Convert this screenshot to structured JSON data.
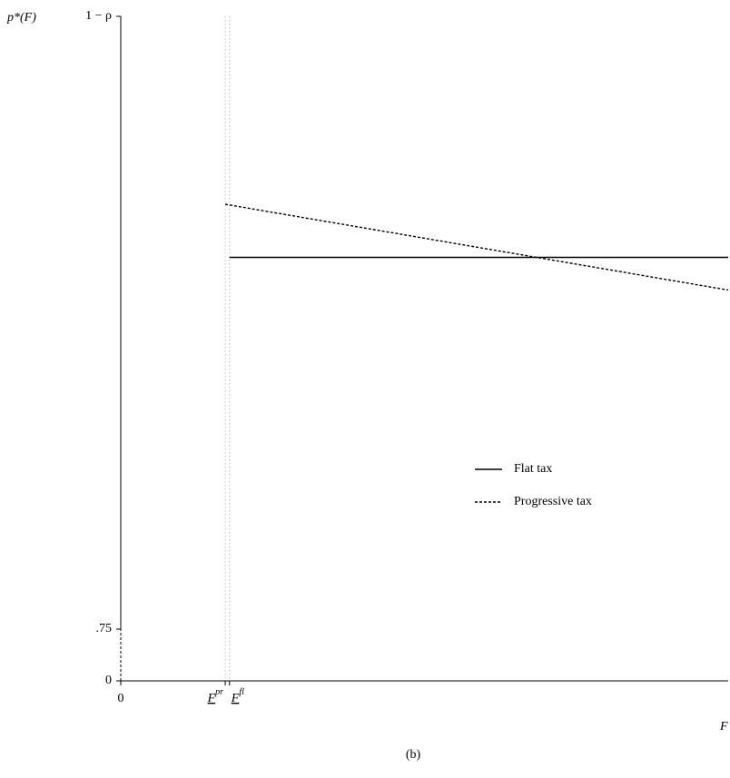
{
  "chart_data": {
    "type": "line",
    "caption": "(b)",
    "ylabel": "p*(F)",
    "xlabel": "F",
    "xlim": [
      0,
      10
    ],
    "ylim": [
      0,
      0.9
    ],
    "yticks": [
      0,
      {
        "value": 0.75,
        "label": ".75"
      },
      {
        "value": 0.9,
        "label": "1 − ρ"
      }
    ],
    "xticks": [
      0,
      {
        "value": 1.72,
        "label": "F",
        "sup": "pr"
      },
      {
        "value": 1.79,
        "label": "F",
        "sup": "fl"
      }
    ],
    "series": [
      {
        "name": "Flat tax",
        "color": "#000000",
        "style": "solid",
        "x": [
          1.79,
          10
        ],
        "values": [
          0.841,
          0.841
        ]
      },
      {
        "name": "Progressive tax",
        "color": "#000000",
        "style": "dashed",
        "x": [
          1.72,
          10
        ],
        "values": [
          0.854,
          0.833
        ]
      }
    ]
  }
}
